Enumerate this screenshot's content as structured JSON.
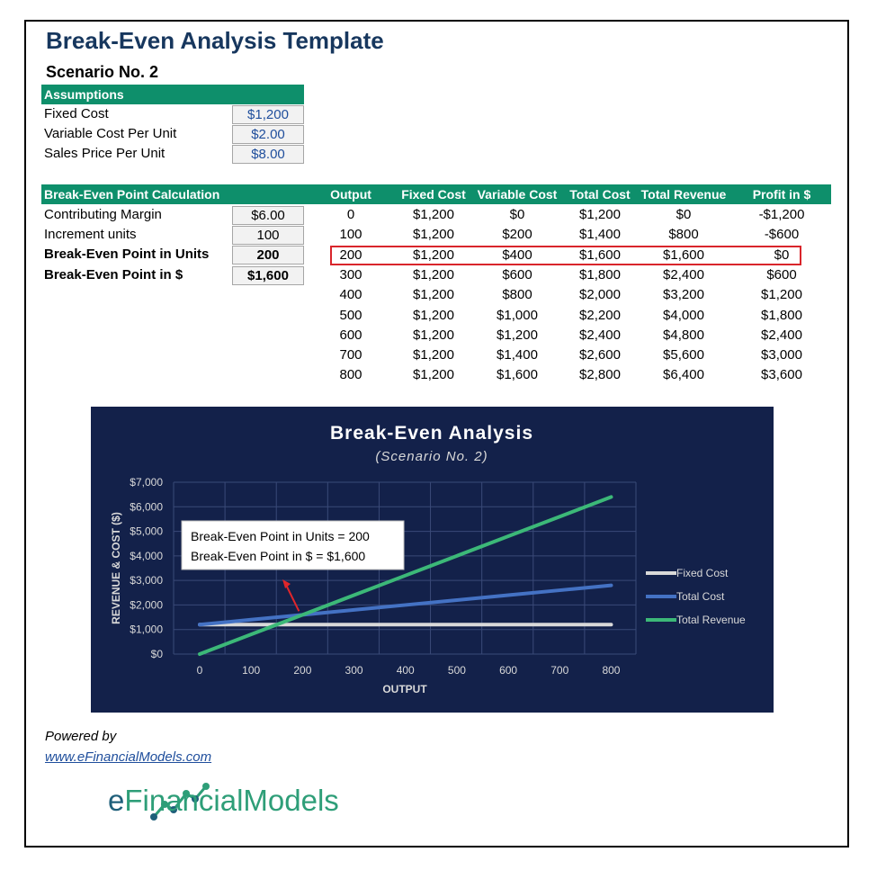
{
  "title": "Break-Even Analysis Template",
  "scenario": "Scenario No. 2",
  "assumptions": {
    "header": "Assumptions",
    "rows": [
      {
        "label": "Fixed Cost",
        "value": "$1,200"
      },
      {
        "label": "Variable Cost Per Unit",
        "value": "$2.00"
      },
      {
        "label": "Sales Price Per Unit",
        "value": "$8.00"
      }
    ]
  },
  "calculation": {
    "header": "Break-Even Point Calculation",
    "rows": [
      {
        "label": "Contributing Margin",
        "value": "$6.00"
      },
      {
        "label": "Increment units",
        "value": "100"
      },
      {
        "label": "Break-Even Point in Units",
        "value": "200"
      },
      {
        "label": "Break-Even Point in $",
        "value": "$1,600"
      }
    ]
  },
  "table": {
    "columns": [
      "Output",
      "Fixed Cost",
      "Variable Cost",
      "Total Cost",
      "Total Revenue",
      "Profit in $"
    ],
    "rows": [
      [
        "0",
        "$1,200",
        "$0",
        "$1,200",
        "$0",
        "-$1,200"
      ],
      [
        "100",
        "$1,200",
        "$200",
        "$1,400",
        "$800",
        "-$600"
      ],
      [
        "200",
        "$1,200",
        "$400",
        "$1,600",
        "$1,600",
        "$0"
      ],
      [
        "300",
        "$1,200",
        "$600",
        "$1,800",
        "$2,400",
        "$600"
      ],
      [
        "400",
        "$1,200",
        "$800",
        "$2,000",
        "$3,200",
        "$1,200"
      ],
      [
        "500",
        "$1,200",
        "$1,000",
        "$2,200",
        "$4,000",
        "$1,800"
      ],
      [
        "600",
        "$1,200",
        "$1,200",
        "$2,400",
        "$4,800",
        "$2,400"
      ],
      [
        "700",
        "$1,200",
        "$1,400",
        "$2,600",
        "$5,600",
        "$3,000"
      ],
      [
        "800",
        "$1,200",
        "$1,600",
        "$2,800",
        "$6,400",
        "$3,600"
      ]
    ],
    "highlighted_row": 2
  },
  "chart_data": {
    "type": "line",
    "title": "Break-Even Analysis",
    "subtitle": "(Scenario No. 2)",
    "xlabel": "OUTPUT",
    "ylabel": "REVENUE & COST ($)",
    "x": [
      0,
      100,
      200,
      300,
      400,
      500,
      600,
      700,
      800
    ],
    "xlim": [
      0,
      800
    ],
    "ylim": [
      0,
      7000
    ],
    "xticks": [
      "0",
      "100",
      "200",
      "300",
      "400",
      "500",
      "600",
      "700",
      "800"
    ],
    "yticks": [
      "$0",
      "$1,000",
      "$2,000",
      "$3,000",
      "$4,000",
      "$5,000",
      "$6,000",
      "$7,000"
    ],
    "grid": true,
    "legend_position": "right",
    "series": [
      {
        "name": "Fixed Cost",
        "color": "#d9d9d9",
        "values": [
          1200,
          1200,
          1200,
          1200,
          1200,
          1200,
          1200,
          1200,
          1200
        ]
      },
      {
        "name": "Total Cost",
        "color": "#4472c4",
        "values": [
          1200,
          1400,
          1600,
          1800,
          2000,
          2200,
          2400,
          2600,
          2800
        ]
      },
      {
        "name": "Total Revenue",
        "color": "#3cb878",
        "values": [
          0,
          800,
          1600,
          2400,
          3200,
          4000,
          4800,
          5600,
          6400
        ]
      }
    ],
    "annotation": {
      "lines": [
        "Break-Even Point in Units = 200",
        "Break-Even Point in $ = $1,600"
      ],
      "point": {
        "x": 200,
        "y": 1600
      },
      "arrow_color": "#e0262b"
    },
    "background": "#13214a"
  },
  "footer": {
    "powered_by": "Powered by",
    "website": "www.eFinancialModels.com",
    "logo_e": "e",
    "logo_rest": "FinancialModels"
  }
}
